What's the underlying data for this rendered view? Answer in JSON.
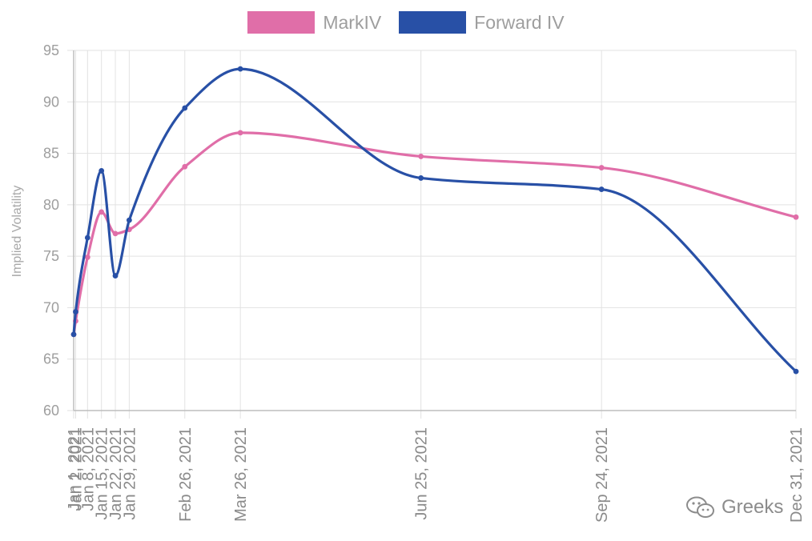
{
  "legend": {
    "mark_label": "MarkIV",
    "forward_label": "Forward IV"
  },
  "watermark": {
    "text": "Greeks",
    "icon": "wechat-icon"
  },
  "colors": {
    "mark": "#e06ea8",
    "forward": "#2850a6",
    "grid": "#e2e2e2",
    "axis": "#bdbdbd"
  },
  "chart_data": {
    "type": "line",
    "title": "",
    "xlabel": "",
    "ylabel": "Implied Volatility",
    "x_scale": "time",
    "ylim": [
      60,
      95
    ],
    "yticks": [
      60,
      65,
      70,
      75,
      80,
      85,
      90,
      95
    ],
    "grid": true,
    "legend_position": "top-center",
    "x": [
      "2021-01-01",
      "2021-01-02",
      "2021-01-08",
      "2021-01-15",
      "2021-01-22",
      "2021-01-29",
      "2021-02-26",
      "2021-03-26",
      "2021-06-25",
      "2021-09-24",
      "2021-12-31"
    ],
    "x_tick_labels": [
      "Jan 1, 2021",
      "Jan 2, 2021",
      "Jan 8, 2021",
      "Jan 15, 2021",
      "Jan 22, 2021",
      "Jan 29, 2021",
      "Feb 26, 2021",
      "Mar 26, 2021",
      "Jun 25, 2021",
      "Sep 24, 2021",
      "Dec 31, 2021"
    ],
    "series": [
      {
        "name": "MarkIV",
        "color": "#e06ea8",
        "values": [
          67.4,
          68.7,
          74.9,
          79.3,
          77.2,
          77.6,
          83.7,
          87.0,
          84.7,
          83.6,
          78.8
        ]
      },
      {
        "name": "Forward IV",
        "color": "#2850a6",
        "values": [
          67.4,
          69.6,
          76.8,
          83.3,
          73.1,
          78.5,
          89.4,
          93.2,
          82.6,
          81.5,
          63.8
        ]
      }
    ]
  }
}
